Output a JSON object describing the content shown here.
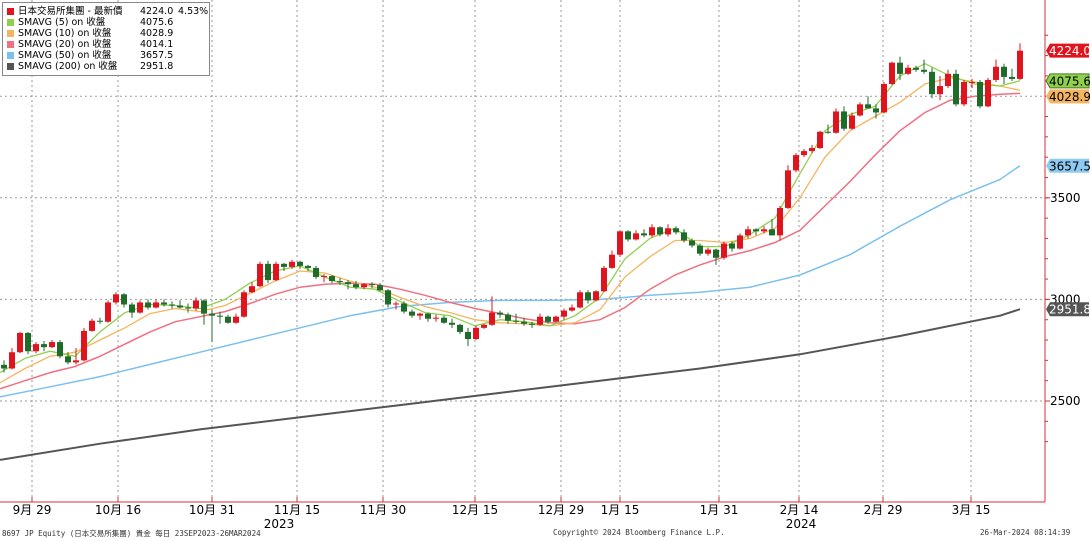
{
  "chart_data": {
    "type": "candlestick",
    "y_axis": {
      "side": "right",
      "ticks": [
        2500,
        3000,
        3500
      ],
      "range": [
        2250,
        4400
      ]
    },
    "x_axis": {
      "labels": [
        "9月 29",
        "10月 16",
        "10月 31",
        "11月 15",
        "11月 30",
        "12月 15",
        "12月 29",
        "1月 15",
        "1月 31",
        "2月 14",
        "2月 29",
        "3月 15"
      ],
      "years": [
        "2023",
        "2024"
      ]
    },
    "grid": true,
    "legend_position": "top-left",
    "legend": [
      {
        "name": "日本交易所集團 - 最新價",
        "value": "4224.0",
        "change": "4.53%",
        "color": "#e0141e"
      },
      {
        "name": "SMAVG (5)  on 收盤",
        "value": "4075.6",
        "color": "#8fd14f"
      },
      {
        "name": "SMAVG (10)  on 收盤",
        "value": "4028.9",
        "color": "#f5b55f"
      },
      {
        "name": "SMAVG (20)  on 收盤",
        "value": "4014.1",
        "color": "#f07080"
      },
      {
        "name": "SMAVG (50)  on 收盤",
        "value": "3657.5",
        "color": "#7cc0ee"
      },
      {
        "name": "SMAVG (200)  on 收盤",
        "value": "2951.8",
        "color": "#555555"
      }
    ],
    "price_tags": [
      {
        "label": "4224.0",
        "value": 4224.0,
        "bg": "#e0141e",
        "fg": "#ffffff"
      },
      {
        "label": "4075.6",
        "value": 4075.6,
        "bg": "#8fd14f",
        "fg": "#000000"
      },
      {
        "label": "4028.9",
        "value": 4028.9,
        "bg": "#f5b55f",
        "fg": "#000000"
      },
      {
        "label": "3657.5",
        "value": 3657.5,
        "bg": "#8fcaf2",
        "fg": "#000000"
      },
      {
        "label": "2951.8",
        "value": 2951.8,
        "bg": "#555555",
        "fg": "#ffffff"
      }
    ],
    "candles": [
      [
        2678,
        2700,
        2640,
        2660
      ],
      [
        2660,
        2760,
        2655,
        2740
      ],
      [
        2740,
        2840,
        2735,
        2835
      ],
      [
        2835,
        2840,
        2730,
        2745
      ],
      [
        2745,
        2790,
        2735,
        2780
      ],
      [
        2780,
        2795,
        2745,
        2765
      ],
      [
        2765,
        2800,
        2760,
        2790
      ],
      [
        2790,
        2800,
        2710,
        2720
      ],
      [
        2720,
        2740,
        2680,
        2690
      ],
      [
        2690,
        2760,
        2680,
        2700
      ],
      [
        2700,
        2860,
        2695,
        2845
      ],
      [
        2845,
        2905,
        2840,
        2895
      ],
      [
        2895,
        2910,
        2880,
        2890
      ],
      [
        2890,
        2995,
        2885,
        2985
      ],
      [
        2985,
        3035,
        2975,
        3025
      ],
      [
        3025,
        3030,
        2960,
        2975
      ],
      [
        2975,
        2985,
        2910,
        2935
      ],
      [
        2935,
        2995,
        2930,
        2985
      ],
      [
        2985,
        3000,
        2950,
        2960
      ],
      [
        2960,
        3000,
        2955,
        2985
      ],
      [
        2985,
        3000,
        2965,
        2975
      ],
      [
        2975,
        2990,
        2955,
        2970
      ],
      [
        2970,
        2995,
        2955,
        2960
      ],
      [
        2960,
        2980,
        2935,
        2955
      ],
      [
        2955,
        3010,
        2945,
        2995
      ],
      [
        2995,
        3000,
        2875,
        2930
      ],
      [
        2930,
        2950,
        2790,
        2920
      ],
      [
        2920,
        2940,
        2880,
        2915
      ],
      [
        2915,
        2925,
        2880,
        2885
      ],
      [
        2885,
        2930,
        2880,
        2915
      ],
      [
        2915,
        3045,
        2910,
        3035
      ],
      [
        3035,
        3085,
        3030,
        3065
      ],
      [
        3065,
        3185,
        3060,
        3175
      ],
      [
        3175,
        3190,
        3080,
        3095
      ],
      [
        3095,
        3185,
        3090,
        3175
      ],
      [
        3175,
        3180,
        3140,
        3160
      ],
      [
        3160,
        3195,
        3150,
        3185
      ],
      [
        3185,
        3190,
        3150,
        3165
      ],
      [
        3165,
        3170,
        3140,
        3155
      ],
      [
        3155,
        3165,
        3100,
        3110
      ],
      [
        3110,
        3125,
        3085,
        3115
      ],
      [
        3115,
        3120,
        3080,
        3090
      ],
      [
        3090,
        3105,
        3070,
        3085
      ],
      [
        3085,
        3095,
        3050,
        3075
      ],
      [
        3075,
        3090,
        3050,
        3060
      ],
      [
        3060,
        3080,
        3050,
        3075
      ],
      [
        3075,
        3085,
        3055,
        3070
      ],
      [
        3070,
        3080,
        3040,
        3045
      ],
      [
        3045,
        3050,
        2960,
        2975
      ],
      [
        2975,
        2990,
        2950,
        2980
      ],
      [
        2980,
        2990,
        2930,
        2940
      ],
      [
        2940,
        2950,
        2910,
        2920
      ],
      [
        2920,
        2935,
        2900,
        2930
      ],
      [
        2930,
        2935,
        2890,
        2905
      ],
      [
        2905,
        2925,
        2890,
        2910
      ],
      [
        2910,
        2920,
        2880,
        2885
      ],
      [
        2885,
        2905,
        2860,
        2875
      ],
      [
        2875,
        2880,
        2830,
        2840
      ],
      [
        2840,
        2860,
        2770,
        2805
      ],
      [
        2805,
        2870,
        2800,
        2860
      ],
      [
        2860,
        2880,
        2855,
        2875
      ],
      [
        2875,
        3015,
        2870,
        2935
      ],
      [
        2935,
        2945,
        2910,
        2925
      ],
      [
        2925,
        2935,
        2880,
        2895
      ],
      [
        2895,
        2930,
        2880,
        2890
      ],
      [
        2890,
        2910,
        2870,
        2880
      ],
      [
        2880,
        2890,
        2860,
        2875
      ],
      [
        2875,
        2930,
        2870,
        2915
      ],
      [
        2915,
        2920,
        2880,
        2890
      ],
      [
        2890,
        2920,
        2885,
        2915
      ],
      [
        2915,
        2955,
        2900,
        2945
      ],
      [
        2945,
        2975,
        2940,
        2960
      ],
      [
        2960,
        3045,
        2955,
        3035
      ],
      [
        3035,
        3045,
        2980,
        2995
      ],
      [
        2995,
        3045,
        2990,
        3040
      ],
      [
        3040,
        3165,
        3035,
        3155
      ],
      [
        3155,
        3240,
        3150,
        3220
      ],
      [
        3220,
        3340,
        3210,
        3335
      ],
      [
        3335,
        3340,
        3285,
        3295
      ],
      [
        3295,
        3340,
        3290,
        3325
      ],
      [
        3325,
        3345,
        3305,
        3315
      ],
      [
        3315,
        3370,
        3305,
        3355
      ],
      [
        3355,
        3360,
        3310,
        3320
      ],
      [
        3320,
        3370,
        3310,
        3350
      ],
      [
        3350,
        3360,
        3320,
        3330
      ],
      [
        3330,
        3345,
        3280,
        3290
      ],
      [
        3290,
        3300,
        3255,
        3265
      ],
      [
        3265,
        3275,
        3215,
        3225
      ],
      [
        3225,
        3255,
        3215,
        3245
      ],
      [
        3245,
        3250,
        3170,
        3205
      ],
      [
        3205,
        3285,
        3195,
        3275
      ],
      [
        3275,
        3285,
        3235,
        3250
      ],
      [
        3250,
        3325,
        3245,
        3315
      ],
      [
        3315,
        3360,
        3300,
        3345
      ],
      [
        3345,
        3350,
        3315,
        3335
      ],
      [
        3335,
        3360,
        3325,
        3345
      ],
      [
        3345,
        3395,
        3335,
        3315
      ],
      [
        3315,
        3460,
        3290,
        3450
      ],
      [
        3450,
        3660,
        3445,
        3635
      ],
      [
        3635,
        3720,
        3625,
        3710
      ],
      [
        3710,
        3740,
        3700,
        3730
      ],
      [
        3730,
        3760,
        3720,
        3745
      ],
      [
        3745,
        3830,
        3740,
        3825
      ],
      [
        3825,
        3860,
        3815,
        3820
      ],
      [
        3820,
        3940,
        3815,
        3925
      ],
      [
        3925,
        3950,
        3830,
        3840
      ],
      [
        3840,
        3920,
        3835,
        3905
      ],
      [
        3905,
        3970,
        3900,
        3960
      ],
      [
        3960,
        4000,
        3955,
        3940
      ],
      [
        3940,
        3960,
        3890,
        3920
      ],
      [
        3920,
        4070,
        3915,
        4060
      ],
      [
        4060,
        4170,
        4055,
        4165
      ],
      [
        4165,
        4195,
        4080,
        4110
      ],
      [
        4110,
        4155,
        4105,
        4140
      ],
      [
        4140,
        4150,
        4120,
        4130
      ],
      [
        4130,
        4180,
        4110,
        4120
      ],
      [
        4120,
        4140,
        3990,
        4010
      ],
      [
        4010,
        4100,
        3980,
        4050
      ],
      [
        4050,
        4130,
        4040,
        4110
      ],
      [
        4110,
        4130,
        3950,
        3960
      ],
      [
        3960,
        4080,
        3950,
        4070
      ],
      [
        4070,
        4085,
        4040,
        4070
      ],
      [
        4070,
        4080,
        3940,
        3950
      ],
      [
        3950,
        4090,
        3945,
        4080
      ],
      [
        4080,
        4180,
        4070,
        4145
      ],
      [
        4145,
        4160,
        4060,
        4095
      ],
      [
        4095,
        4135,
        4075,
        4085
      ],
      [
        4085,
        4260,
        4080,
        4224
      ]
    ],
    "sma5": [
      [
        0,
        2640
      ],
      [
        25,
        2710
      ],
      [
        50,
        2745
      ],
      [
        75,
        2720
      ],
      [
        100,
        2840
      ],
      [
        125,
        2935
      ],
      [
        150,
        2975
      ],
      [
        175,
        2970
      ],
      [
        200,
        2955
      ],
      [
        225,
        3000
      ],
      [
        250,
        3080
      ],
      [
        275,
        3140
      ],
      [
        300,
        3165
      ],
      [
        325,
        3110
      ],
      [
        350,
        3060
      ],
      [
        375,
        3050
      ],
      [
        400,
        2990
      ],
      [
        425,
        2935
      ],
      [
        450,
        2920
      ],
      [
        475,
        2870
      ],
      [
        500,
        2900
      ],
      [
        525,
        2890
      ],
      [
        550,
        2870
      ],
      [
        575,
        2920
      ],
      [
        600,
        3010
      ],
      [
        625,
        3200
      ],
      [
        650,
        3300
      ],
      [
        675,
        3350
      ],
      [
        700,
        3260
      ],
      [
        725,
        3260
      ],
      [
        750,
        3320
      ],
      [
        775,
        3400
      ],
      [
        800,
        3620
      ],
      [
        825,
        3830
      ],
      [
        850,
        3910
      ],
      [
        875,
        3950
      ],
      [
        900,
        4100
      ],
      [
        925,
        4160
      ],
      [
        950,
        4100
      ],
      [
        975,
        4060
      ],
      [
        1000,
        4050
      ],
      [
        1020,
        4076
      ]
    ],
    "sma10": [
      [
        0,
        2590
      ],
      [
        25,
        2660
      ],
      [
        50,
        2720
      ],
      [
        75,
        2740
      ],
      [
        100,
        2800
      ],
      [
        125,
        2860
      ],
      [
        150,
        2930
      ],
      [
        175,
        2955
      ],
      [
        200,
        2940
      ],
      [
        225,
        2970
      ],
      [
        250,
        3030
      ],
      [
        275,
        3090
      ],
      [
        300,
        3140
      ],
      [
        325,
        3130
      ],
      [
        350,
        3090
      ],
      [
        375,
        3060
      ],
      [
        400,
        3010
      ],
      [
        425,
        2965
      ],
      [
        450,
        2935
      ],
      [
        475,
        2900
      ],
      [
        500,
        2885
      ],
      [
        525,
        2880
      ],
      [
        550,
        2870
      ],
      [
        575,
        2885
      ],
      [
        600,
        2950
      ],
      [
        625,
        3110
      ],
      [
        650,
        3210
      ],
      [
        675,
        3290
      ],
      [
        700,
        3290
      ],
      [
        725,
        3280
      ],
      [
        750,
        3300
      ],
      [
        775,
        3350
      ],
      [
        800,
        3500
      ],
      [
        825,
        3700
      ],
      [
        850,
        3830
      ],
      [
        875,
        3900
      ],
      [
        900,
        3970
      ],
      [
        925,
        4060
      ],
      [
        950,
        4090
      ],
      [
        975,
        4070
      ],
      [
        1000,
        4050
      ],
      [
        1020,
        4029
      ]
    ],
    "sma20": [
      [
        0,
        2560
      ],
      [
        25,
        2600
      ],
      [
        50,
        2640
      ],
      [
        75,
        2670
      ],
      [
        100,
        2720
      ],
      [
        125,
        2780
      ],
      [
        150,
        2840
      ],
      [
        175,
        2890
      ],
      [
        200,
        2915
      ],
      [
        225,
        2940
      ],
      [
        250,
        2980
      ],
      [
        275,
        3025
      ],
      [
        300,
        3060
      ],
      [
        325,
        3075
      ],
      [
        350,
        3080
      ],
      [
        375,
        3075
      ],
      [
        400,
        3050
      ],
      [
        425,
        3020
      ],
      [
        450,
        2985
      ],
      [
        475,
        2955
      ],
      [
        500,
        2930
      ],
      [
        525,
        2905
      ],
      [
        550,
        2885
      ],
      [
        575,
        2880
      ],
      [
        600,
        2900
      ],
      [
        625,
        2960
      ],
      [
        650,
        3050
      ],
      [
        675,
        3120
      ],
      [
        700,
        3170
      ],
      [
        725,
        3210
      ],
      [
        750,
        3240
      ],
      [
        775,
        3280
      ],
      [
        800,
        3340
      ],
      [
        825,
        3460
      ],
      [
        850,
        3580
      ],
      [
        875,
        3710
      ],
      [
        900,
        3830
      ],
      [
        925,
        3920
      ],
      [
        950,
        3980
      ],
      [
        975,
        4000
      ],
      [
        1000,
        4010
      ],
      [
        1020,
        4014
      ]
    ],
    "sma50": [
      [
        0,
        2520
      ],
      [
        50,
        2570
      ],
      [
        100,
        2620
      ],
      [
        150,
        2680
      ],
      [
        200,
        2740
      ],
      [
        250,
        2800
      ],
      [
        300,
        2860
      ],
      [
        350,
        2920
      ],
      [
        400,
        2965
      ],
      [
        450,
        2985
      ],
      [
        500,
        2995
      ],
      [
        550,
        2995
      ],
      [
        600,
        3000
      ],
      [
        650,
        3020
      ],
      [
        700,
        3035
      ],
      [
        750,
        3060
      ],
      [
        800,
        3120
      ],
      [
        850,
        3220
      ],
      [
        900,
        3360
      ],
      [
        950,
        3490
      ],
      [
        1000,
        3590
      ],
      [
        1020,
        3658
      ]
    ],
    "sma200": [
      [
        0,
        2210
      ],
      [
        100,
        2290
      ],
      [
        200,
        2360
      ],
      [
        300,
        2420
      ],
      [
        400,
        2480
      ],
      [
        500,
        2540
      ],
      [
        600,
        2600
      ],
      [
        700,
        2660
      ],
      [
        800,
        2730
      ],
      [
        900,
        2820
      ],
      [
        1000,
        2920
      ],
      [
        1020,
        2952
      ]
    ]
  },
  "footer": {
    "left": "8697 JP Equity (日本交易所集團) 貴金  每日 23SEP2023-26MAR2024",
    "center": "Copyright© 2024 Bloomberg Finance L.P.",
    "right": "26-Mar-2024 08:14:39"
  }
}
